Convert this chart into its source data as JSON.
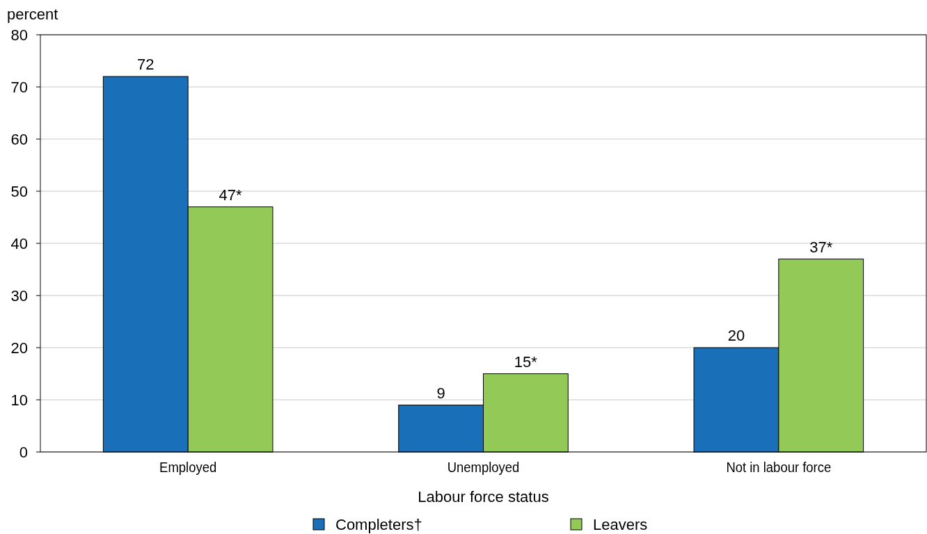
{
  "chart_data": {
    "type": "bar",
    "ylabel": "percent",
    "xlabel": "Labour force status",
    "categories": [
      "Employed",
      "Unemployed",
      "Not in labour force"
    ],
    "series": [
      {
        "name": "Completers†",
        "color": "#1a70b8",
        "values": [
          72,
          9,
          20
        ],
        "value_labels": [
          "72",
          "9",
          "20"
        ]
      },
      {
        "name": "Leavers",
        "color": "#92c957",
        "values": [
          47,
          15,
          37
        ],
        "value_labels": [
          "47*",
          "15*",
          "37*"
        ]
      }
    ],
    "ylim": [
      0,
      80
    ],
    "yticks": [
      0,
      10,
      20,
      30,
      40,
      50,
      60,
      70,
      80
    ],
    "grid": "y",
    "legend": "bottom"
  }
}
